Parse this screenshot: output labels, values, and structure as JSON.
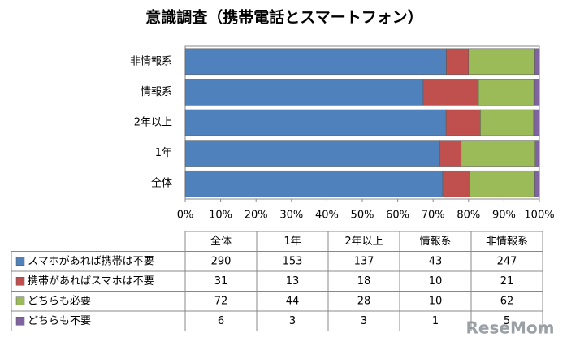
{
  "chart_data": {
    "type": "stacked-bar-100",
    "orientation": "horizontal",
    "title": "意識調査（携帯電話とスマートフォン）",
    "categories": [
      "全体",
      "1年",
      "2年以上",
      "情報系",
      "非情報系"
    ],
    "series": [
      {
        "name": "スマホがあれば携帯は不要",
        "color": "#4f81bd",
        "values": [
          290,
          153,
          137,
          43,
          247
        ]
      },
      {
        "name": "携帯があればスマホは不要",
        "color": "#c0504d",
        "values": [
          31,
          13,
          18,
          10,
          21
        ]
      },
      {
        "name": "どちらも必要",
        "color": "#9bbb59",
        "values": [
          72,
          44,
          28,
          10,
          62
        ]
      },
      {
        "name": "どちらも不要",
        "color": "#8064a2",
        "values": [
          6,
          3,
          3,
          1,
          5
        ]
      }
    ],
    "xlim": [
      0,
      100
    ],
    "xticks": [
      {
        "value": 0,
        "label": "0%"
      },
      {
        "value": 10,
        "label": "10%"
      },
      {
        "value": 20,
        "label": "20%"
      },
      {
        "value": 30,
        "label": "30%"
      },
      {
        "value": 40,
        "label": "40%"
      },
      {
        "value": 50,
        "label": "50%"
      },
      {
        "value": 60,
        "label": "60%"
      },
      {
        "value": 70,
        "label": "70%"
      },
      {
        "value": 80,
        "label": "80%"
      },
      {
        "value": 90,
        "label": "90%"
      },
      {
        "value": 100,
        "label": "100%"
      }
    ],
    "grid": false,
    "data_table": true,
    "watermark": "ReseMom"
  }
}
